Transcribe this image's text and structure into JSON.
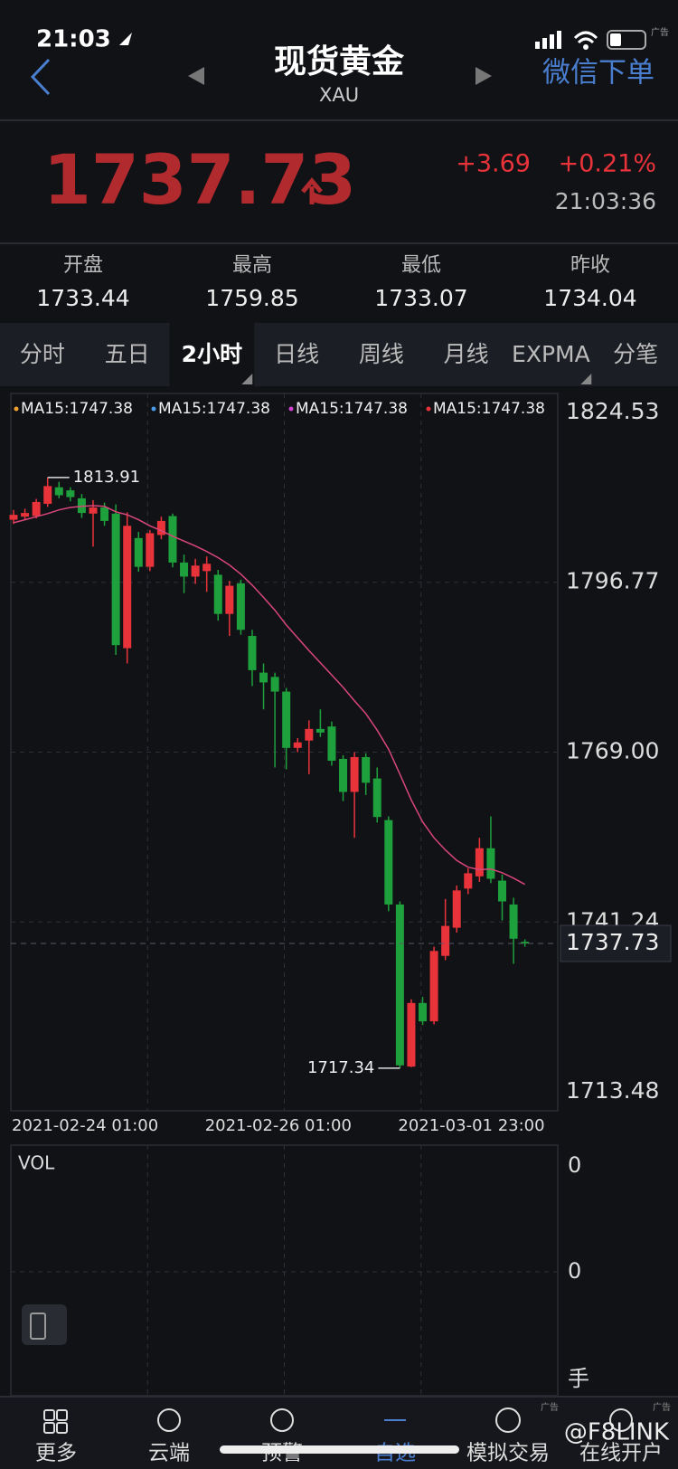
{
  "status_bar": {
    "time": "21:03"
  },
  "header": {
    "title": "现货黄金",
    "symbol": "XAU",
    "action": "微信下单"
  },
  "quote": {
    "price": "1737.73",
    "change": "+3.69",
    "change_percent": "+0.21%",
    "time": "21:03:36"
  },
  "stats": [
    {
      "label": "开盘",
      "value": "1733.44"
    },
    {
      "label": "最高",
      "value": "1759.85"
    },
    {
      "label": "最低",
      "value": "1733.07"
    },
    {
      "label": "昨收",
      "value": "1734.04"
    }
  ],
  "tabs": [
    "分时",
    "五日",
    "2小时",
    "日线",
    "周线",
    "月线",
    "EXPMA",
    "分笔"
  ],
  "active_tab": 2,
  "chart_data": {
    "type": "candlestick",
    "ma_legend": [
      {
        "label": "MA15:1747.38",
        "color": "#f0a030"
      },
      {
        "label": "MA15:1747.38",
        "color": "#4a9ae8"
      },
      {
        "label": "MA15:1747.38",
        "color": "#d040d0"
      },
      {
        "label": "MA15:1747.38",
        "color": "#e8333a"
      }
    ],
    "categories": [
      "2021-02-24 01:00",
      null,
      null,
      null,
      null,
      null,
      null,
      null,
      null,
      null,
      null,
      null,
      null,
      null,
      null,
      null,
      null,
      "2021-02-26 01:00",
      null,
      null,
      null,
      null,
      null,
      null,
      null,
      null,
      null,
      null,
      null,
      null,
      null,
      null,
      null,
      null,
      "2021-03-01 23:00",
      null,
      null,
      null,
      null,
      null,
      null,
      null,
      null,
      null,
      null,
      null
    ],
    "open": [
      1807.0,
      1807.5,
      1807.6,
      1809.6,
      1812.3,
      1811.8,
      1810.5,
      1808.0,
      1809.0,
      1808.0,
      1786.0,
      1804.0,
      1799.3,
      1804.5,
      1807.6,
      1800.0,
      1797.7,
      1798.6,
      1798.0,
      1791.6,
      1796.6,
      1788.0,
      1782.0,
      1781.3,
      1778.9,
      1769.7,
      1770.9,
      1772.8,
      1773.2,
      1767.9,
      1762.5,
      1768.2,
      1764.7,
      1757.9,
      1744.1,
      1717.6,
      1728.0,
      1725.0,
      1735.7,
      1740.3,
      1746.7,
      1748.7,
      1753.3,
      1748.0,
      1744.1,
      1738.0
    ],
    "high": [
      1808.6,
      1808.8,
      1810.4,
      1813.91,
      1813.2,
      1812.3,
      1811.2,
      1810.2,
      1809.8,
      1809.5,
      1808.2,
      1805.0,
      1805.3,
      1807.5,
      1808.0,
      1801.3,
      1800.6,
      1801.0,
      1798.8,
      1797.0,
      1797.2,
      1789.0,
      1783.5,
      1782.0,
      1779.5,
      1771.3,
      1774.2,
      1776.0,
      1774.0,
      1768.5,
      1769.0,
      1768.8,
      1766.5,
      1758.5,
      1744.6,
      1728.6,
      1729.0,
      1737.2,
      1745.0,
      1747.2,
      1750.0,
      1755.0,
      1758.5,
      1749.0,
      1745.2,
      1738.4
    ],
    "low": [
      1806.3,
      1807.0,
      1807.2,
      1809.1,
      1810.5,
      1810.0,
      1807.3,
      1802.6,
      1806.0,
      1784.9,
      1783.5,
      1798.5,
      1798.6,
      1803.8,
      1799.2,
      1795.0,
      1796.5,
      1795.2,
      1790.5,
      1788.0,
      1788.2,
      1779.8,
      1776.0,
      1766.5,
      1766.2,
      1769.0,
      1765.4,
      1771.5,
      1766.8,
      1761.0,
      1755.0,
      1762.0,
      1757.5,
      1743.0,
      1717.34,
      1717.5,
      1724.4,
      1724.5,
      1735.0,
      1739.5,
      1745.8,
      1747.8,
      1747.6,
      1741.5,
      1734.4,
      1737.2
    ],
    "close": [
      1807.8,
      1808.1,
      1809.9,
      1812.5,
      1811.0,
      1810.7,
      1808.1,
      1809.0,
      1806.8,
      1786.5,
      1806.0,
      1799.3,
      1804.8,
      1806.8,
      1800.0,
      1797.7,
      1799.5,
      1799.8,
      1791.6,
      1796.2,
      1789.0,
      1782.4,
      1780.4,
      1778.9,
      1769.7,
      1770.6,
      1772.8,
      1772.2,
      1767.6,
      1762.5,
      1768.2,
      1764.0,
      1758.4,
      1744.1,
      1717.8,
      1728.0,
      1725.0,
      1736.5,
      1740.6,
      1746.4,
      1749.2,
      1753.3,
      1748.3,
      1744.6,
      1738.5,
      1737.73
    ],
    "up_color": "#e8333a",
    "down_color": "#1ea03c",
    "ma_line": {
      "color": "#d9467a",
      "values": [
        1806.5,
        1807.0,
        1807.5,
        1808.0,
        1808.6,
        1809.0,
        1809.2,
        1809.3,
        1809.2,
        1808.3,
        1807.8,
        1807.0,
        1806.0,
        1805.2,
        1804.3,
        1803.5,
        1802.7,
        1801.8,
        1800.8,
        1799.6,
        1798.1,
        1796.3,
        1794.3,
        1792.2,
        1789.8,
        1787.7,
        1785.6,
        1783.6,
        1781.6,
        1779.6,
        1777.4,
        1775.3,
        1772.6,
        1769.5,
        1765.4,
        1761.2,
        1757.6,
        1755.0,
        1753.0,
        1751.3,
        1750.2,
        1749.8,
        1749.9,
        1749.3,
        1748.4,
        1747.38
      ]
    },
    "last_price": 1737.73,
    "ylim": [
      1713.48,
      1824.53
    ],
    "yticks": [
      1824.53,
      1796.77,
      {
        "value": 1769,
        "label": "1769.00"
      },
      1741.24,
      1713.48
    ],
    "grid": true
  },
  "volume_panel": {
    "title": "VOL",
    "tick_labels": [
      "0",
      "0"
    ],
    "unit": "手"
  },
  "nav": [
    "更多",
    "云端",
    "预警",
    "自选",
    "模拟交易",
    "在线开户"
  ],
  "active_nav": 3,
  "ad_labels": [
    "广告",
    "广告",
    "广告"
  ],
  "watermark": "@F8LINK"
}
